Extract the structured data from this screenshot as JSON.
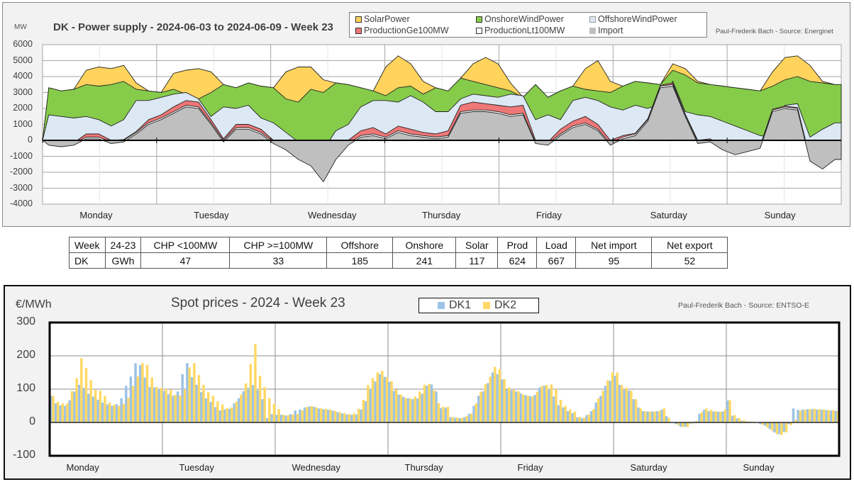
{
  "power_panel": {
    "unit": "MW",
    "title": "DK - Power supply - 2024-06-03 to 2024-06-09 - Week 23",
    "credit": "Paul-Frederik Bach - Source: Energinet",
    "legend": [
      {
        "label": "SolarPower",
        "color": "#ffd35c"
      },
      {
        "label": "OnshoreWindPower",
        "color": "#86cc4a"
      },
      {
        "label": "OffshoreWindPower",
        "color": "#dce8f4"
      },
      {
        "label": "ProductionGe100MW",
        "color": "#ee7777"
      },
      {
        "label": "ProductionLt100MW",
        "color": "#ffffff"
      },
      {
        "label": "Import",
        "color": "#bfbfbf"
      }
    ]
  },
  "stats_table": {
    "headers": [
      "Week",
      "24-23",
      "CHP <100MW",
      "CHP >=100MW",
      "Offshore",
      "Onshore",
      "Solar",
      "Prod",
      "Load",
      "Net import",
      "Net export"
    ],
    "row": [
      "DK",
      "GWh",
      "47",
      "33",
      "185",
      "241",
      "117",
      "624",
      "667",
      "95",
      "52"
    ]
  },
  "price_panel": {
    "unit": "€/MWh",
    "title": "Spot prices - 2024 - Week 23",
    "credit": "Paul-Frederik Bach - Source: ENTSO-E",
    "legend": [
      {
        "label": "DK1",
        "color": "#9dc3e6"
      },
      {
        "label": "DK2",
        "color": "#ffd966"
      }
    ]
  },
  "chart_data": [
    {
      "type": "area",
      "title": "DK - Power supply - 2024-06-03 to 2024-06-09 - Week 23",
      "ylabel": "MW",
      "ylim": [
        -4000,
        6000
      ],
      "yticks": [
        6000,
        5000,
        4000,
        3000,
        2000,
        1000,
        0,
        -1000,
        -2000,
        -3000,
        -4000
      ],
      "x_index_ticks": [
        "1",
        "289",
        "577",
        "865",
        "1153",
        "1441",
        "1729"
      ],
      "categories": [
        "Monday",
        "Tuesday",
        "Wednesday",
        "Thursday",
        "Friday",
        "Saturday",
        "Sunday"
      ],
      "grid": true,
      "legend": "top",
      "note": "Stacked cumulative levels (MW) sampled every 3 hours, 8 per day",
      "series": [
        {
          "name": "Import",
          "color": "#bfbfbf",
          "values": [
            -300,
            -400,
            -300,
            100,
            100,
            -200,
            -100,
            400,
            1000,
            1300,
            1700,
            2100,
            2000,
            1000,
            -100,
            700,
            700,
            400,
            -200,
            -600,
            -1200,
            -1600,
            -2600,
            -1200,
            -300,
            200,
            300,
            100,
            500,
            300,
            200,
            100,
            200,
            1700,
            1800,
            1800,
            1700,
            1500,
            1600,
            -200,
            -300,
            300,
            800,
            1000,
            600,
            -300,
            100,
            300,
            1200,
            3300,
            3400,
            1500,
            -200,
            -100,
            -600,
            -900,
            -700,
            -500,
            1800,
            2000,
            1900,
            -1300,
            -1800,
            -1200
          ]
        },
        {
          "name": "ProductionLt100MW",
          "color": "#ffffff",
          "values": [
            -200,
            -300,
            -200,
            200,
            200,
            -100,
            0,
            500,
            1100,
            1400,
            1800,
            2200,
            2100,
            1100,
            0,
            800,
            800,
            500,
            -100,
            -500,
            -1100,
            -1500,
            -2500,
            -1100,
            -200,
            300,
            400,
            200,
            600,
            400,
            300,
            200,
            300,
            1800,
            1900,
            1900,
            1800,
            1600,
            1700,
            -100,
            -200,
            400,
            900,
            1100,
            700,
            -200,
            200,
            400,
            1300,
            3400,
            3500,
            1600,
            -100,
            0,
            -500,
            -800,
            -600,
            -400,
            1900,
            2100,
            2000,
            -1200,
            -1700,
            -1100
          ]
        },
        {
          "name": "ProductionGe100MW",
          "color": "#ee7777",
          "values": [
            -100,
            -250,
            -150,
            400,
            400,
            0,
            50,
            550,
            1300,
            1600,
            2100,
            2500,
            2400,
            1300,
            100,
            1000,
            1000,
            700,
            0,
            -400,
            -1000,
            -1400,
            -2400,
            -1000,
            0,
            600,
            800,
            400,
            900,
            700,
            500,
            400,
            600,
            2200,
            2400,
            2300,
            2200,
            2100,
            2200,
            0,
            -100,
            700,
            1200,
            1500,
            1000,
            0,
            300,
            450,
            1350,
            3450,
            3600,
            1650,
            0,
            100,
            -450,
            -750,
            -550,
            -350,
            1950,
            2150,
            2050,
            -1150,
            -1650,
            -1050
          ]
        },
        {
          "name": "OffshoreWindPower",
          "color": "#dce8f4",
          "values": [
            1600,
            1500,
            1400,
            1500,
            1300,
            900,
            1300,
            2500,
            2500,
            2700,
            2900,
            3000,
            2600,
            1500,
            2100,
            2000,
            2200,
            1400,
            1100,
            500,
            -100,
            -300,
            -600,
            600,
            1000,
            2100,
            2500,
            2500,
            2400,
            2800,
            2400,
            1800,
            1800,
            2600,
            2900,
            2800,
            2700,
            2900,
            2800,
            1300,
            1600,
            1300,
            2500,
            2700,
            2500,
            2100,
            1900,
            2200,
            2000,
            2300,
            3700,
            1800,
            1600,
            1500,
            1200,
            900,
            600,
            300,
            200,
            2200,
            2300,
            200,
            700,
            1100
          ]
        },
        {
          "name": "OnshoreWindPower",
          "color": "#86cc4a",
          "values": [
            3300,
            3100,
            3200,
            3500,
            3400,
            3500,
            3700,
            3200,
            3100,
            3000,
            3200,
            2900,
            2600,
            3000,
            3500,
            3300,
            3600,
            3400,
            3300,
            2600,
            2400,
            3200,
            3000,
            3600,
            3500,
            3300,
            3100,
            2800,
            3300,
            3400,
            2900,
            3300,
            3100,
            3900,
            3700,
            3500,
            3300,
            3100,
            2700,
            3500,
            2700,
            3100,
            3400,
            3200,
            3100,
            3000,
            3400,
            3700,
            3600,
            3500,
            4400,
            4100,
            3600,
            3500,
            3400,
            3300,
            3200,
            3100,
            3400,
            3800,
            4000,
            3700,
            3600,
            3500
          ]
        },
        {
          "name": "SolarPower",
          "color": "#ffd35c",
          "values": [
            3300,
            3100,
            3200,
            4400,
            4600,
            4500,
            4700,
            3600,
            3100,
            3000,
            4200,
            4400,
            4500,
            4300,
            3500,
            3300,
            3600,
            3400,
            3300,
            4300,
            4600,
            4600,
            3800,
            3600,
            3500,
            3300,
            3100,
            4600,
            5300,
            4800,
            3700,
            3300,
            3100,
            3900,
            4800,
            5200,
            4800,
            3600,
            2700,
            3500,
            2700,
            3100,
            3400,
            4500,
            5000,
            3700,
            3400,
            3700,
            3600,
            3500,
            4800,
            4500,
            3700,
            3500,
            3400,
            3300,
            3200,
            3100,
            4300,
            5200,
            5300,
            4700,
            3700,
            3500
          ]
        }
      ]
    },
    {
      "type": "bar",
      "title": "Spot prices - 2024 - Week 23",
      "ylabel": "€/MWh",
      "ylim": [
        -100,
        300
      ],
      "yticks": [
        300,
        200,
        100,
        0,
        -100
      ],
      "categories": [
        "Monday",
        "Tuesday",
        "Wednesday",
        "Thursday",
        "Friday",
        "Saturday",
        "Sunday"
      ],
      "grid": true,
      "legend": "top",
      "note": "Hourly prices, 168 hours",
      "series": [
        {
          "name": "DK1",
          "color": "#9dc3e6",
          "values": [
            80,
            57,
            51,
            50,
            67,
            93,
            113,
            104,
            86,
            78,
            68,
            60,
            54,
            50,
            55,
            73,
            110,
            138,
            178,
            172,
            135,
            106,
            105,
            100,
            95,
            85,
            80,
            93,
            145,
            178,
            136,
            113,
            91,
            72,
            61,
            46,
            36,
            39,
            41,
            57,
            73,
            94,
            104,
            112,
            97,
            70,
            13,
            25,
            23,
            23,
            21,
            25,
            36,
            39,
            45,
            48,
            47,
            42,
            40,
            38,
            35,
            31,
            27,
            24,
            23,
            24,
            39,
            64,
            100,
            123,
            145,
            137,
            122,
            95,
            84,
            77,
            73,
            70,
            72,
            86,
            110,
            114,
            93,
            43,
            44,
            16,
            14,
            13,
            16,
            26,
            50,
            80,
            94,
            118,
            150,
            145,
            129,
            99,
            97,
            93,
            87,
            82,
            79,
            83,
            105,
            110,
            98,
            78,
            52,
            45,
            34,
            28,
            15,
            13,
            22,
            34,
            60,
            80,
            110,
            125,
            140,
            113,
            98,
            96,
            70,
            45,
            34,
            33,
            33,
            34,
            38,
            19,
            0,
            -5,
            -13,
            -13,
            -3,
            3,
            26,
            38,
            34,
            33,
            32,
            33,
            66,
            20,
            12,
            5,
            3,
            2,
            0,
            -5,
            -10,
            -20,
            -30,
            -35,
            -28,
            -5,
            42,
            38,
            39,
            40,
            40,
            39,
            38,
            37,
            36,
            35
          ]
        },
        {
          "name": "DK2",
          "color": "#ffd966",
          "values": [
            80,
            62,
            57,
            58,
            94,
            133,
            193,
            163,
            127,
            98,
            95,
            80,
            60,
            53,
            50,
            56,
            74,
            110,
            138,
            178,
            173,
            135,
            107,
            104,
            100,
            98,
            83,
            81,
            98,
            165,
            178,
            142,
            113,
            91,
            80,
            64,
            54,
            43,
            45,
            63,
            84,
            117,
            176,
            235,
            140,
            106,
            73,
            56,
            40,
            23,
            22,
            24,
            25,
            36,
            46,
            49,
            45,
            42,
            41,
            39,
            35,
            31,
            28,
            25,
            27,
            41,
            68,
            112,
            133,
            150,
            155,
            136,
            124,
            99,
            84,
            73,
            72,
            78,
            93,
            113,
            116,
            96,
            58,
            47,
            47,
            16,
            15,
            14,
            19,
            26,
            57,
            92,
            115,
            137,
            167,
            160,
            130,
            105,
            98,
            94,
            84,
            80,
            78,
            92,
            110,
            113,
            114,
            100,
            68,
            50,
            39,
            33,
            17,
            15,
            24,
            40,
            72,
            95,
            126,
            150,
            150,
            112,
            104,
            95,
            70,
            42,
            33,
            33,
            33,
            35,
            42,
            14,
            0,
            -8,
            -14,
            -14,
            -3,
            5,
            31,
            42,
            38,
            34,
            32,
            39,
            67,
            22,
            13,
            7,
            3,
            2,
            0,
            -7,
            -15,
            -25,
            -35,
            -38,
            -30,
            -8,
            8,
            35,
            38,
            40,
            41,
            40,
            39,
            38,
            37,
            35
          ]
        }
      ]
    }
  ]
}
